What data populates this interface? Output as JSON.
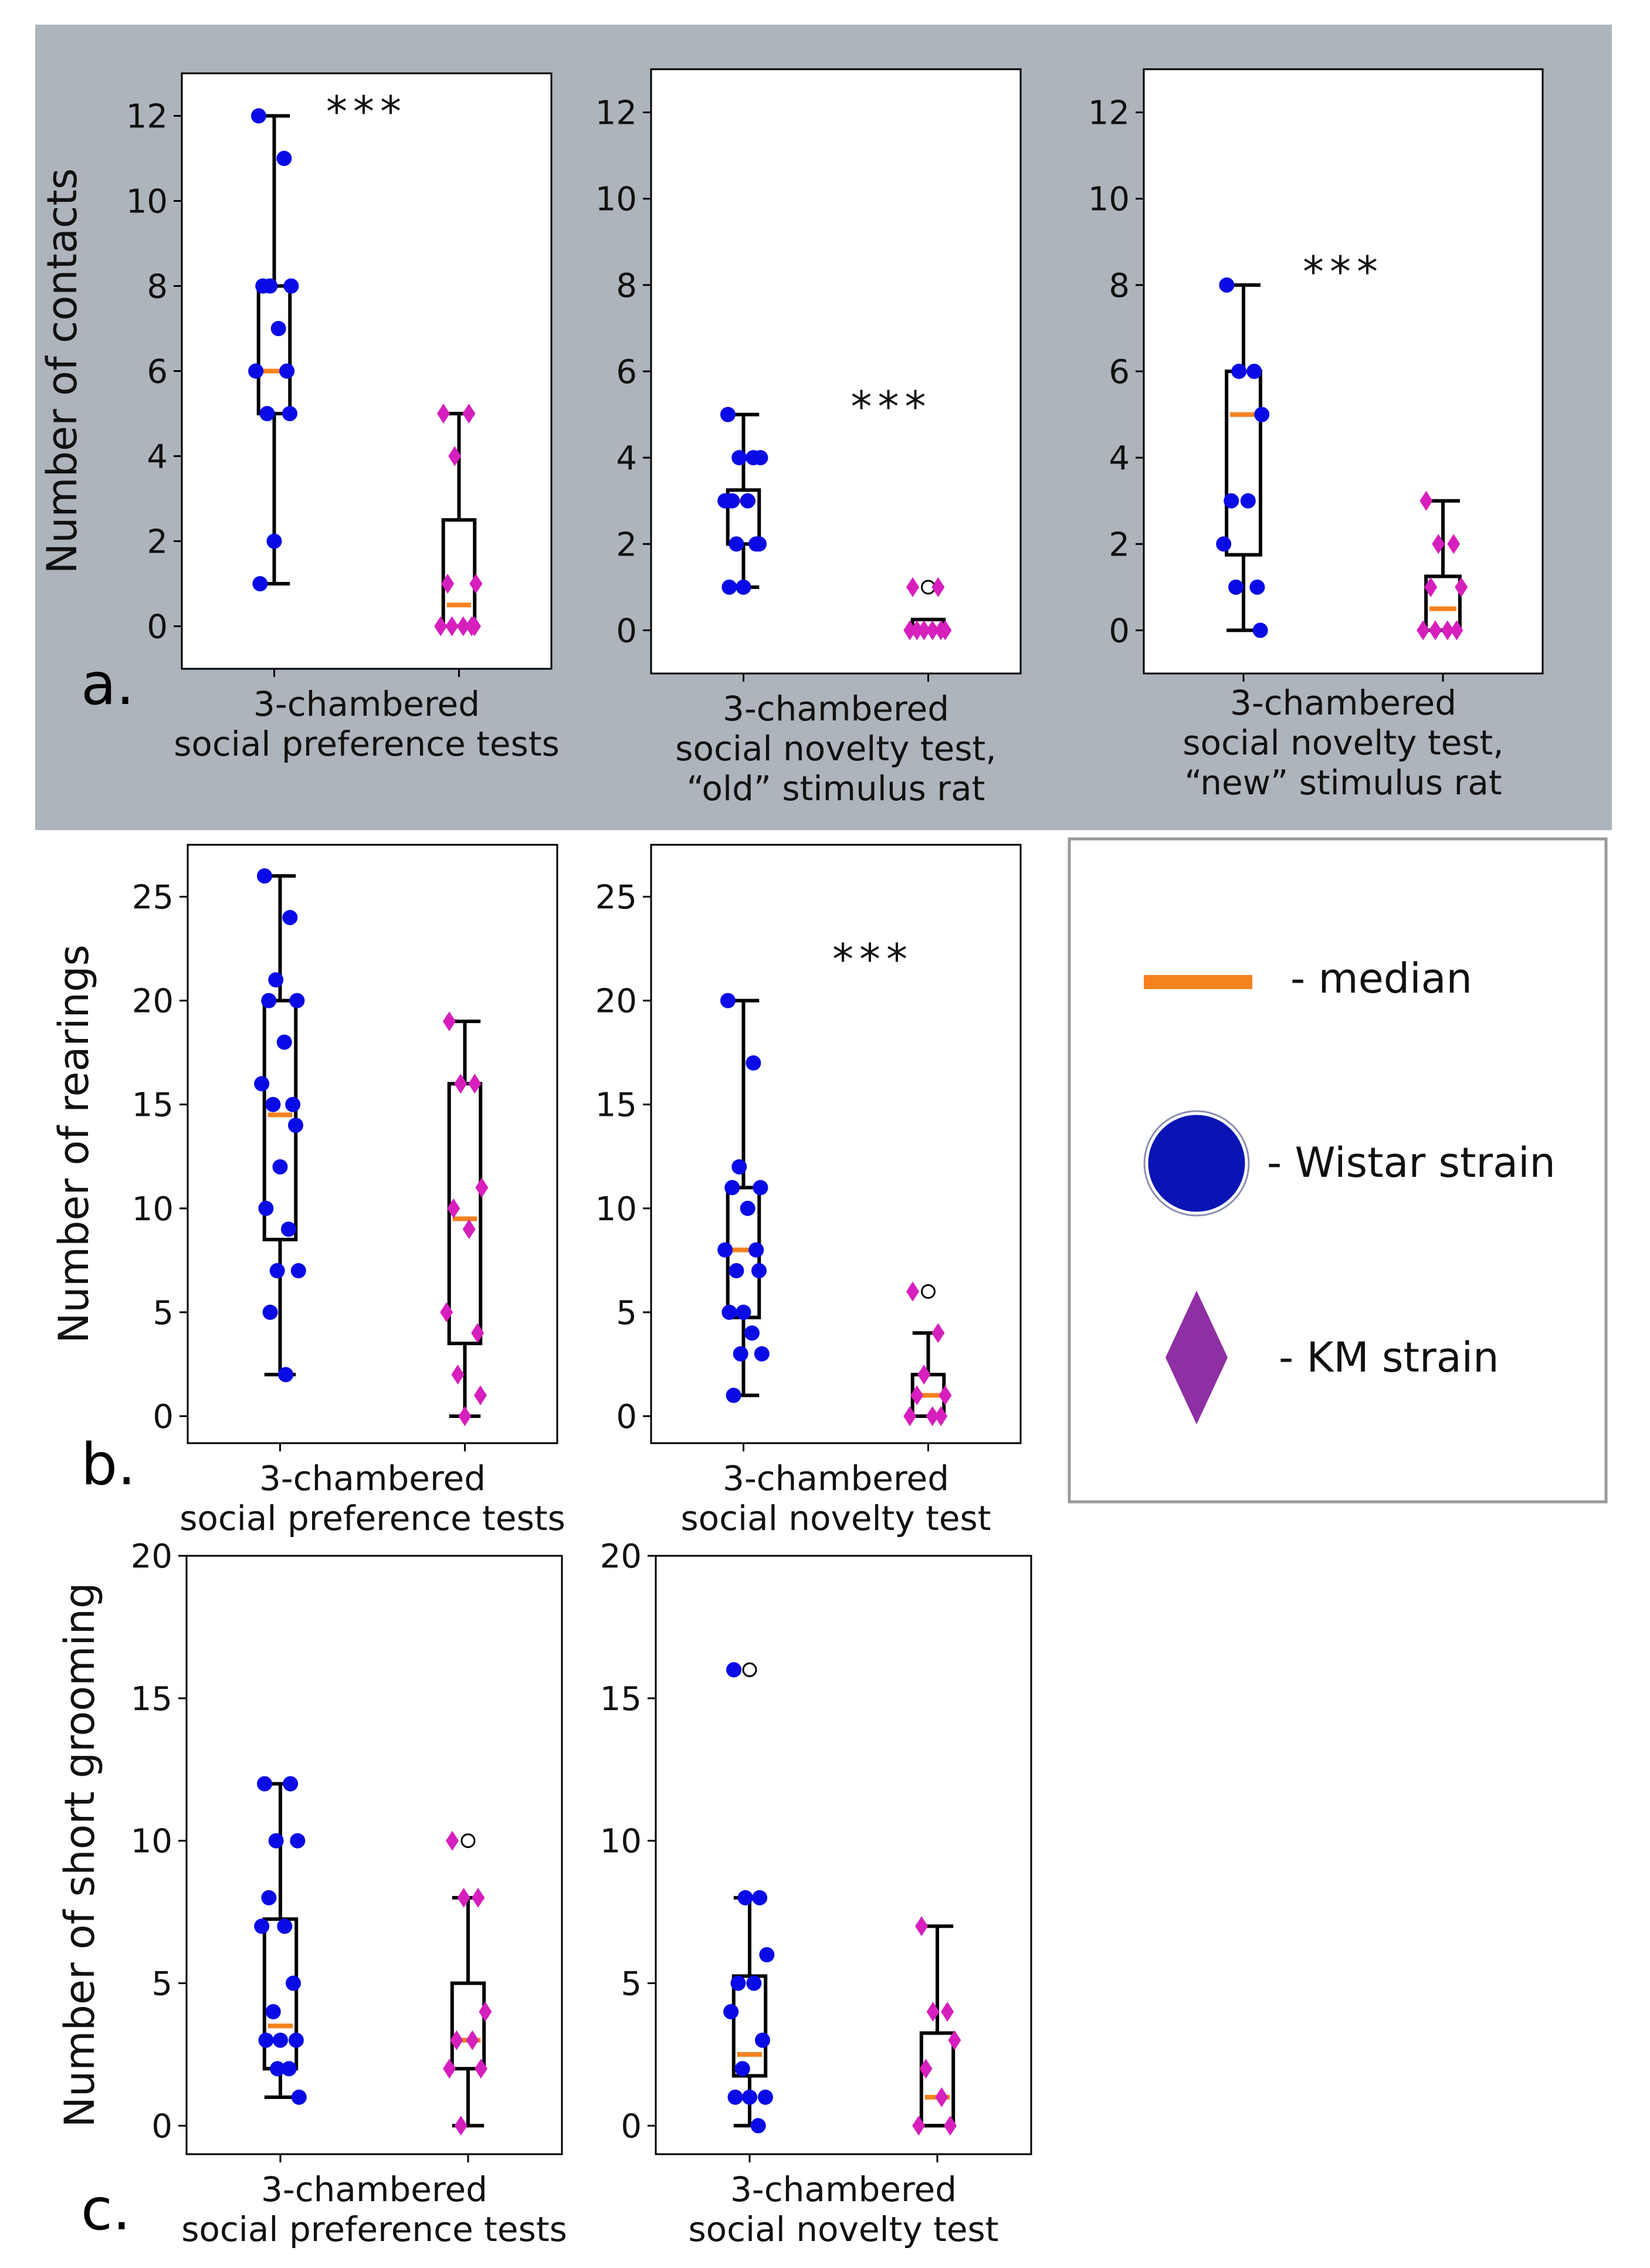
{
  "colors": {
    "panel_a_background": "#aeb4bc",
    "wistar": "#0a0ae6",
    "km": "#d61fbd",
    "median": "#f5821f",
    "legend_wistar_disc": "#0a14b4",
    "legend_km_diamond": "#8e2fa3"
  },
  "chart_data": [
    {
      "type": "box-strip",
      "panel": "a",
      "panel_label": "a.",
      "ylabel": "Number of contacts",
      "xlabel_lines": [
        "3-chambered",
        "social preference tests"
      ],
      "ylim": [
        -1,
        13
      ],
      "yticks": [
        0,
        2,
        4,
        6,
        8,
        10,
        12
      ],
      "significance": "***",
      "groups": [
        {
          "strain": "Wistar",
          "q1": 5,
          "median": 6,
          "q3": 8,
          "whisker_low": 1,
          "whisker_high": 12,
          "fliers": [],
          "points": [
            12,
            11,
            8,
            8,
            8,
            7,
            6,
            6,
            5,
            5,
            2,
            1
          ]
        },
        {
          "strain": "KM",
          "q1": 0,
          "median": 0.5,
          "q3": 2.5,
          "whisker_low": 0,
          "whisker_high": 5,
          "fliers": [],
          "points": [
            5,
            5,
            4,
            1,
            1,
            0,
            0,
            0,
            0,
            0
          ]
        }
      ]
    },
    {
      "type": "box-strip",
      "panel": "a",
      "ylabel": "",
      "xlabel_lines": [
        "3-chambered",
        "social novelty test,",
        "“old” stimulus rat"
      ],
      "ylim": [
        -1,
        13
      ],
      "yticks": [
        0,
        2,
        4,
        6,
        8,
        10,
        12
      ],
      "significance": "***",
      "groups": [
        {
          "strain": "Wistar",
          "q1": 2,
          "median": 3,
          "q3": 3.25,
          "whisker_low": 1,
          "whisker_high": 5,
          "fliers": [],
          "points": [
            5,
            4,
            4,
            4,
            3,
            3,
            3,
            2,
            2,
            2,
            1,
            1
          ]
        },
        {
          "strain": "KM",
          "q1": 0,
          "median": 0,
          "q3": 0.25,
          "whisker_low": 0,
          "whisker_high": 0.25,
          "fliers": [
            1
          ],
          "points": [
            1,
            1,
            0,
            0,
            0,
            0,
            0,
            0
          ]
        }
      ]
    },
    {
      "type": "box-strip",
      "panel": "a",
      "ylabel": "",
      "xlabel_lines": [
        "3-chambered",
        "social novelty test,",
        "“new” stimulus rat"
      ],
      "ylim": [
        -1,
        13
      ],
      "yticks": [
        0,
        2,
        4,
        6,
        8,
        10,
        12
      ],
      "significance": "***",
      "groups": [
        {
          "strain": "Wistar",
          "q1": 1.75,
          "median": 5,
          "q3": 6,
          "whisker_low": 0,
          "whisker_high": 8,
          "fliers": [],
          "points": [
            8,
            6,
            6,
            5,
            3,
            3,
            2,
            1,
            1,
            0
          ]
        },
        {
          "strain": "KM",
          "q1": 0,
          "median": 0.5,
          "q3": 1.25,
          "whisker_low": 0,
          "whisker_high": 3,
          "fliers": [],
          "points": [
            3,
            2,
            2,
            1,
            1,
            0,
            0,
            0,
            0
          ]
        }
      ]
    },
    {
      "type": "box-strip",
      "panel": "b",
      "panel_label": "b.",
      "ylabel": "Number of rearings",
      "xlabel_lines": [
        "3-chambered",
        "social preference tests"
      ],
      "ylim": [
        -1.3,
        27.5
      ],
      "yticks": [
        0,
        5,
        10,
        15,
        20,
        25
      ],
      "significance": "",
      "groups": [
        {
          "strain": "Wistar",
          "q1": 8.5,
          "median": 14.5,
          "q3": 20,
          "whisker_low": 2,
          "whisker_high": 26,
          "fliers": [],
          "points": [
            26,
            24,
            21,
            20,
            20,
            18,
            16,
            15,
            15,
            14,
            12,
            10,
            9,
            7,
            7,
            5,
            2
          ]
        },
        {
          "strain": "KM",
          "q1": 3.5,
          "median": 9.5,
          "q3": 16,
          "whisker_low": 0,
          "whisker_high": 19,
          "fliers": [],
          "points": [
            19,
            16,
            16,
            11,
            10,
            9,
            5,
            4,
            2,
            1,
            0
          ]
        }
      ]
    },
    {
      "type": "box-strip",
      "panel": "b",
      "ylabel": "",
      "xlabel_lines": [
        "3-chambered",
        "social novelty test"
      ],
      "ylim": [
        -1.3,
        27.5
      ],
      "yticks": [
        0,
        5,
        10,
        15,
        20,
        25
      ],
      "significance": "***",
      "groups": [
        {
          "strain": "Wistar",
          "q1": 4.75,
          "median": 8,
          "q3": 11,
          "whisker_low": 1,
          "whisker_high": 20,
          "fliers": [],
          "points": [
            20,
            17,
            12,
            11,
            11,
            10,
            8,
            8,
            7,
            7,
            5,
            5,
            4,
            3,
            3,
            1
          ]
        },
        {
          "strain": "KM",
          "q1": 0,
          "median": 1,
          "q3": 2,
          "whisker_low": 0,
          "whisker_high": 4,
          "fliers": [
            6
          ],
          "points": [
            6,
            4,
            2,
            1,
            1,
            0,
            0,
            0
          ]
        }
      ]
    },
    {
      "type": "box-strip",
      "panel": "c",
      "panel_label": "c.",
      "ylabel": "Number of short grooming",
      "xlabel_lines": [
        "3-chambered",
        "social preference tests"
      ],
      "ylim": [
        -1,
        20
      ],
      "yticks": [
        0,
        5,
        10,
        15,
        20
      ],
      "significance": "",
      "groups": [
        {
          "strain": "Wistar",
          "q1": 2,
          "median": 3.5,
          "q3": 7.25,
          "whisker_low": 1,
          "whisker_high": 12,
          "fliers": [],
          "points": [
            12,
            12,
            10,
            10,
            8,
            7,
            7,
            5,
            4,
            3,
            3,
            3,
            2,
            2,
            1
          ]
        },
        {
          "strain": "KM",
          "q1": 2,
          "median": 3,
          "q3": 5,
          "whisker_low": 0,
          "whisker_high": 8,
          "fliers": [
            10
          ],
          "points": [
            10,
            8,
            8,
            4,
            3,
            3,
            2,
            2,
            0
          ]
        }
      ]
    },
    {
      "type": "box-strip",
      "panel": "c",
      "ylabel": "",
      "xlabel_lines": [
        "3-chambered",
        "social novelty test"
      ],
      "ylim": [
        -1,
        20
      ],
      "yticks": [
        0,
        5,
        10,
        15,
        20
      ],
      "significance": "",
      "groups": [
        {
          "strain": "Wistar",
          "q1": 1.75,
          "median": 2.5,
          "q3": 5.25,
          "whisker_low": 0,
          "whisker_high": 8,
          "fliers": [
            16
          ],
          "points": [
            16,
            8,
            8,
            6,
            5,
            5,
            4,
            3,
            2,
            1,
            1,
            1,
            0
          ]
        },
        {
          "strain": "KM",
          "q1": 0,
          "median": 1,
          "q3": 3.25,
          "whisker_low": 0,
          "whisker_high": 7,
          "fliers": [],
          "points": [
            7,
            4,
            4,
            3,
            2,
            1,
            0,
            0
          ]
        }
      ]
    }
  ],
  "legend": {
    "items": [
      {
        "symbol": "median-bar",
        "label": "- median"
      },
      {
        "symbol": "circle",
        "label": "- Wistar strain"
      },
      {
        "symbol": "diamond",
        "label": "- KM strain"
      }
    ]
  }
}
